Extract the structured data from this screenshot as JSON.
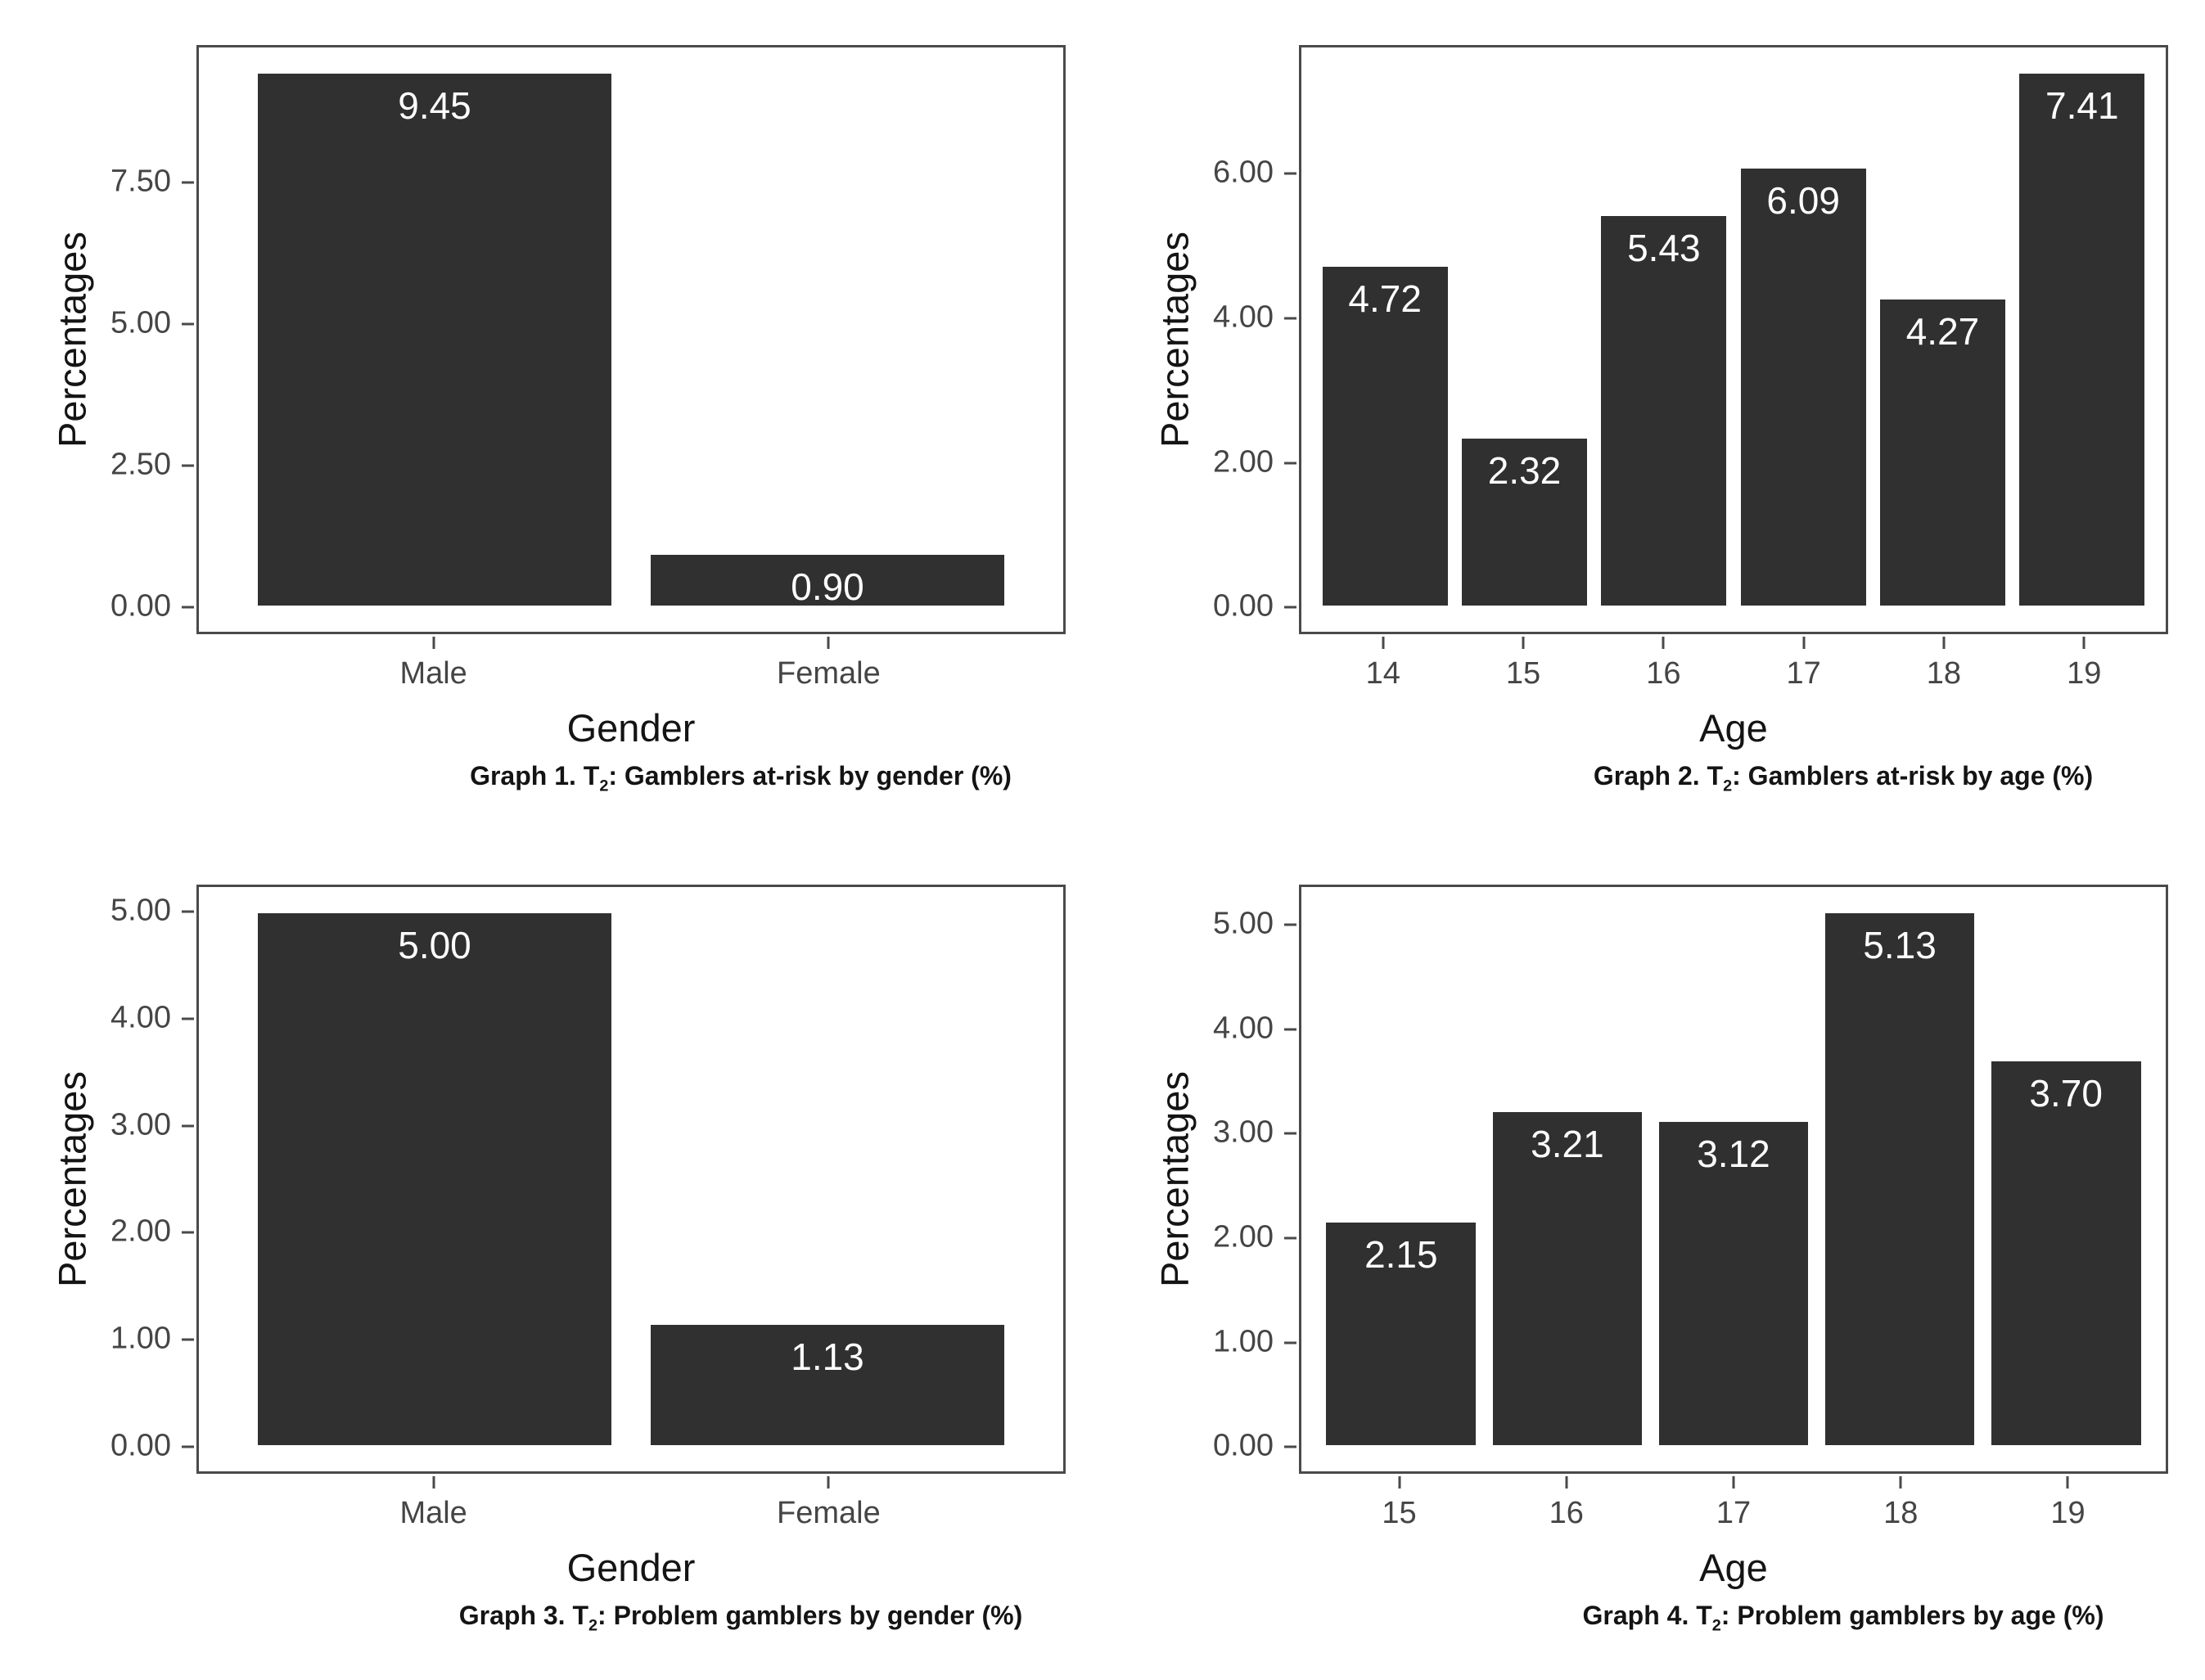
{
  "figure": {
    "background": "#ffffff",
    "bar_color": "#303030",
    "bar_label_color": "#ffffff",
    "axis_text_color": "#454545",
    "title_text_color": "#141414",
    "panel_border_color": "#4a4a4a"
  },
  "chart_data": [
    {
      "type": "bar",
      "caption": {
        "prefix": "Graph 1. T",
        "sub": "2",
        "suffix": ": Gamblers at-risk by gender (%)"
      },
      "xlabel": "Gender",
      "ylabel": "Percentages",
      "categories": [
        "Male",
        "Female"
      ],
      "values": [
        9.45,
        0.9
      ],
      "value_labels": [
        "9.45",
        "0.90"
      ],
      "yticks": [
        0,
        2.5,
        5,
        7.5
      ],
      "ytick_labels": [
        "0.00",
        "2.50",
        "5.00",
        "7.50"
      ],
      "ylim": [
        -0.4725,
        9.9225
      ],
      "grid": false,
      "legend": false,
      "bar_width_ratio": 0.9
    },
    {
      "type": "bar",
      "caption": {
        "prefix": "Graph 2. T",
        "sub": "2",
        "suffix": ": Gamblers at-risk by age (%)"
      },
      "xlabel": "Age",
      "ylabel": "Percentages",
      "categories": [
        "14",
        "15",
        "16",
        "17",
        "18",
        "19"
      ],
      "values": [
        4.72,
        2.32,
        5.43,
        6.09,
        4.27,
        7.41
      ],
      "value_labels": [
        "4.72",
        "2.32",
        "5.43",
        "6.09",
        "4.27",
        "7.41"
      ],
      "yticks": [
        0,
        2,
        4,
        6
      ],
      "ytick_labels": [
        "0.00",
        "2.00",
        "4.00",
        "6.00"
      ],
      "ylim": [
        -0.3705,
        7.7805
      ],
      "grid": false,
      "legend": false,
      "bar_width_ratio": 0.9
    },
    {
      "type": "bar",
      "caption": {
        "prefix": "Graph 3. T",
        "sub": "2",
        "suffix": ": Problem gamblers by gender (%)"
      },
      "xlabel": "Gender",
      "ylabel": "Percentages",
      "categories": [
        "Male",
        "Female"
      ],
      "values": [
        5.0,
        1.13
      ],
      "value_labels": [
        "5.00",
        "1.13"
      ],
      "yticks": [
        0,
        1,
        2,
        3,
        4,
        5
      ],
      "ytick_labels": [
        "0.00",
        "1.00",
        "2.00",
        "3.00",
        "4.00",
        "5.00"
      ],
      "ylim": [
        -0.25,
        5.25
      ],
      "grid": false,
      "legend": false,
      "bar_width_ratio": 0.9
    },
    {
      "type": "bar",
      "caption": {
        "prefix": "Graph 4. T",
        "sub": "2",
        "suffix": ": Problem gamblers by age (%)"
      },
      "xlabel": "Age",
      "ylabel": "Percentages",
      "categories": [
        "15",
        "16",
        "17",
        "18",
        "19"
      ],
      "values": [
        2.15,
        3.21,
        3.12,
        5.13,
        3.7
      ],
      "value_labels": [
        "2.15",
        "3.21",
        "3.12",
        "5.13",
        "3.70"
      ],
      "yticks": [
        0,
        1,
        2,
        3,
        4,
        5
      ],
      "ytick_labels": [
        "0.00",
        "1.00",
        "2.00",
        "3.00",
        "4.00",
        "5.00"
      ],
      "ylim": [
        -0.2565,
        5.3865
      ],
      "grid": false,
      "legend": false,
      "bar_width_ratio": 0.9
    }
  ]
}
